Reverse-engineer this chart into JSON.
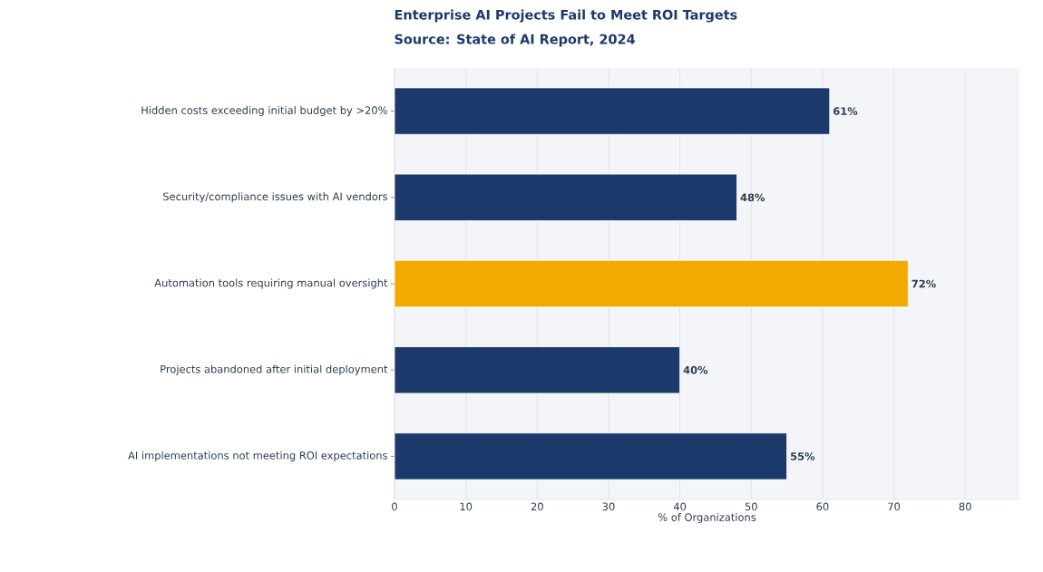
{
  "chart_data": {
    "type": "bar",
    "orientation": "horizontal",
    "title": "Enterprise AI Projects Fail to Meet ROI Targets",
    "subtitle": "Source: State of AI Report, 2024",
    "categories": [
      "Hidden costs exceeding initial budget by >20%",
      "Security/compliance issues with AI vendors",
      "Automation tools requiring manual oversight",
      "Projects abandoned after initial deployment",
      "AI implementations not meeting ROI expectations"
    ],
    "values": [
      61,
      48,
      72,
      40,
      55
    ],
    "colors": [
      "#1b3a6b",
      "#1b3a6b",
      "#f2a900",
      "#1b3a6b",
      "#1b3a6b"
    ],
    "value_labels": [
      "61%",
      "48%",
      "72%",
      "40%",
      "55%"
    ],
    "xlabel": "% of Organizations",
    "xlim": [
      0,
      87.6
    ],
    "xticks": [
      0,
      10,
      20,
      30,
      40,
      50,
      60,
      70,
      80
    ],
    "grid": "x"
  }
}
